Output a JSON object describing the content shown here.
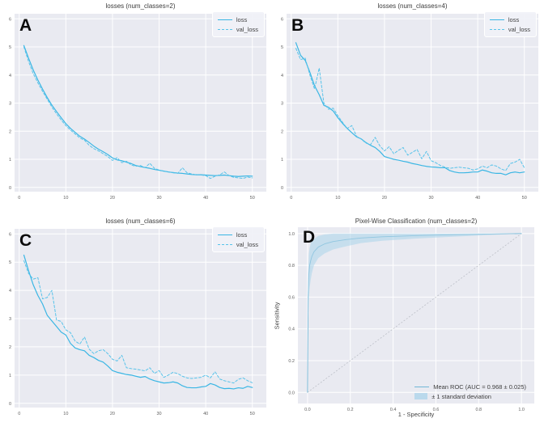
{
  "colors": {
    "axes_background": "#e9eaf1",
    "grid": "#ffffff",
    "loss_line": "#3ab6e4",
    "val_loss_line": "#58c3ea",
    "roc_line": "#72b7d6",
    "roc_band": "#a9d3ea",
    "diagonal": "#bcbfc7",
    "tick_text": "#606060",
    "title_text": "#3a3a3a",
    "panel_letter": "#0a0a0a"
  },
  "panels": [
    {
      "letter": "A"
    },
    {
      "letter": "B"
    },
    {
      "letter": "C"
    },
    {
      "letter": "D"
    }
  ],
  "chart_data": [
    {
      "type": "line",
      "title": "losses (num_classes=2)",
      "xlabel": "",
      "ylabel": "",
      "xlim": [
        -1,
        53
      ],
      "ylim": [
        -0.15,
        6.18
      ],
      "xticks": [
        0,
        10,
        20,
        30,
        40,
        50
      ],
      "yticks": [
        0,
        1,
        2,
        3,
        4,
        5,
        6
      ],
      "tick_decimals": 0,
      "grid": true,
      "legend_position": "upper right",
      "x": [
        1,
        2,
        3,
        4,
        5,
        6,
        7,
        8,
        9,
        10,
        11,
        12,
        13,
        14,
        15,
        16,
        17,
        18,
        19,
        20,
        21,
        22,
        23,
        24,
        25,
        26,
        27,
        28,
        29,
        30,
        31,
        32,
        33,
        34,
        35,
        36,
        37,
        38,
        39,
        40,
        41,
        42,
        43,
        44,
        45,
        46,
        47,
        48,
        49,
        50
      ],
      "series": [
        {
          "name": "loss",
          "dash": "solid",
          "color": "#3ab6e4",
          "values": [
            5.05,
            4.6,
            4.18,
            3.82,
            3.5,
            3.2,
            2.93,
            2.7,
            2.48,
            2.27,
            2.1,
            1.96,
            1.82,
            1.72,
            1.6,
            1.47,
            1.36,
            1.27,
            1.17,
            1.05,
            0.98,
            0.95,
            0.9,
            0.85,
            0.78,
            0.74,
            0.71,
            0.68,
            0.64,
            0.61,
            0.58,
            0.55,
            0.53,
            0.51,
            0.5,
            0.48,
            0.46,
            0.45,
            0.45,
            0.44,
            0.43,
            0.42,
            0.43,
            0.44,
            0.42,
            0.4,
            0.39,
            0.4,
            0.41,
            0.4
          ]
        },
        {
          "name": "val_loss",
          "dash": "dashed",
          "color": "#58c3ea",
          "values": [
            5.0,
            4.48,
            4.05,
            3.72,
            3.42,
            3.14,
            2.86,
            2.62,
            2.4,
            2.2,
            2.04,
            1.9,
            1.76,
            1.68,
            1.5,
            1.38,
            1.3,
            1.2,
            1.1,
            0.96,
            1.06,
            0.88,
            0.93,
            0.8,
            0.75,
            0.78,
            0.7,
            0.86,
            0.68,
            0.62,
            0.58,
            0.56,
            0.52,
            0.5,
            0.7,
            0.52,
            0.48,
            0.45,
            0.44,
            0.42,
            0.32,
            0.4,
            0.45,
            0.55,
            0.42,
            0.36,
            0.34,
            0.32,
            0.37,
            0.34
          ]
        }
      ]
    },
    {
      "type": "line",
      "title": "losses (num_classes=4)",
      "xlabel": "",
      "ylabel": "",
      "xlim": [
        -1,
        53
      ],
      "ylim": [
        -0.15,
        6.18
      ],
      "xticks": [
        0,
        10,
        20,
        30,
        40,
        50
      ],
      "yticks": [
        0,
        1,
        2,
        3,
        4,
        5,
        6
      ],
      "tick_decimals": 0,
      "grid": true,
      "legend_position": "upper right",
      "x": [
        1,
        2,
        3,
        4,
        5,
        6,
        7,
        8,
        9,
        10,
        11,
        12,
        13,
        14,
        15,
        16,
        17,
        18,
        19,
        20,
        21,
        22,
        23,
        24,
        25,
        26,
        27,
        28,
        29,
        30,
        31,
        32,
        33,
        34,
        35,
        36,
        37,
        38,
        39,
        40,
        41,
        42,
        43,
        44,
        45,
        46,
        47,
        48,
        49,
        50
      ],
      "series": [
        {
          "name": "loss",
          "dash": "solid",
          "color": "#3ab6e4",
          "values": [
            5.15,
            4.7,
            4.52,
            4.1,
            3.62,
            3.3,
            2.92,
            2.85,
            2.72,
            2.48,
            2.28,
            2.1,
            1.95,
            1.8,
            1.73,
            1.6,
            1.5,
            1.42,
            1.28,
            1.1,
            1.05,
            1.0,
            0.97,
            0.93,
            0.9,
            0.85,
            0.82,
            0.78,
            0.75,
            0.73,
            0.72,
            0.7,
            0.7,
            0.6,
            0.55,
            0.52,
            0.52,
            0.53,
            0.55,
            0.55,
            0.62,
            0.58,
            0.52,
            0.5,
            0.5,
            0.45,
            0.52,
            0.55,
            0.52,
            0.55
          ]
        },
        {
          "name": "val_loss",
          "dash": "dashed",
          "color": "#58c3ea",
          "values": [
            4.95,
            4.55,
            4.6,
            4.0,
            3.5,
            4.25,
            3.0,
            2.78,
            2.82,
            2.55,
            2.32,
            2.1,
            2.2,
            1.82,
            1.72,
            1.58,
            1.52,
            1.78,
            1.48,
            1.3,
            1.45,
            1.2,
            1.32,
            1.42,
            1.15,
            1.25,
            1.35,
            1.02,
            1.28,
            0.95,
            0.88,
            0.78,
            0.72,
            0.68,
            0.7,
            0.72,
            0.7,
            0.68,
            0.62,
            0.66,
            0.76,
            0.7,
            0.8,
            0.76,
            0.66,
            0.6,
            0.85,
            0.9,
            1.0,
            0.7
          ]
        }
      ]
    },
    {
      "type": "line",
      "title": "losses (num_classes=6)",
      "xlabel": "",
      "ylabel": "",
      "xlim": [
        -1,
        53
      ],
      "ylim": [
        -0.15,
        6.18
      ],
      "xticks": [
        0,
        10,
        20,
        30,
        40,
        50
      ],
      "yticks": [
        0,
        1,
        2,
        3,
        4,
        5,
        6
      ],
      "tick_decimals": 0,
      "grid": true,
      "legend_position": "upper right",
      "x": [
        1,
        2,
        3,
        4,
        5,
        6,
        7,
        8,
        9,
        10,
        11,
        12,
        13,
        14,
        15,
        16,
        17,
        18,
        19,
        20,
        21,
        22,
        23,
        24,
        25,
        26,
        27,
        28,
        29,
        30,
        31,
        32,
        33,
        34,
        35,
        36,
        37,
        38,
        39,
        40,
        41,
        42,
        43,
        44,
        45,
        46,
        47,
        48,
        49,
        50
      ],
      "series": [
        {
          "name": "loss",
          "dash": "solid",
          "color": "#3ab6e4",
          "values": [
            5.25,
            4.7,
            4.2,
            3.82,
            3.52,
            3.12,
            2.92,
            2.72,
            2.52,
            2.42,
            2.12,
            1.96,
            1.9,
            1.86,
            1.7,
            1.62,
            1.52,
            1.46,
            1.32,
            1.16,
            1.1,
            1.06,
            1.02,
            1.0,
            0.96,
            0.92,
            0.95,
            0.86,
            0.8,
            0.76,
            0.72,
            0.73,
            0.76,
            0.72,
            0.62,
            0.56,
            0.55,
            0.55,
            0.58,
            0.6,
            0.7,
            0.65,
            0.56,
            0.52,
            0.53,
            0.51,
            0.55,
            0.53,
            0.6,
            0.56
          ]
        },
        {
          "name": "val_loss",
          "dash": "dashed",
          "color": "#58c3ea",
          "values": [
            5.05,
            4.6,
            4.4,
            4.45,
            3.7,
            3.75,
            4.0,
            2.95,
            2.9,
            2.6,
            2.5,
            2.2,
            2.1,
            2.35,
            1.92,
            1.76,
            1.86,
            1.9,
            1.76,
            1.56,
            1.5,
            1.7,
            1.26,
            1.23,
            1.21,
            1.18,
            1.15,
            1.26,
            1.06,
            1.16,
            0.92,
            1.0,
            1.1,
            1.05,
            0.96,
            0.9,
            0.88,
            0.9,
            0.92,
            1.0,
            0.9,
            1.12,
            0.86,
            0.8,
            0.76,
            0.72,
            0.85,
            0.9,
            0.8,
            0.73
          ]
        }
      ]
    },
    {
      "type": "line",
      "title": "Pixel-Wise Classification (num_classes=2)",
      "xlabel": "1 - Specificity",
      "ylabel": "Sensitivity",
      "xlim": [
        -0.045,
        1.06
      ],
      "ylim": [
        -0.07,
        1.04
      ],
      "xticks": [
        0,
        0.2,
        0.4,
        0.6,
        0.8,
        1.0
      ],
      "yticks": [
        0,
        0.2,
        0.4,
        0.6,
        0.8,
        1.0
      ],
      "tick_decimals": 1,
      "grid": true,
      "diagonal": true,
      "legend_position": "lower right",
      "series": [
        {
          "name": "Mean ROC (AUC = 0.968 ± 0.025)",
          "dash": "solid",
          "color": "#72b7d6",
          "width": 0.9,
          "swatch": "line",
          "x": [
            0,
            0.003,
            0.006,
            0.01,
            0.015,
            0.02,
            0.03,
            0.05,
            0.08,
            0.12,
            0.18,
            0.25,
            0.35,
            0.5,
            0.65,
            0.8,
            1.0
          ],
          "values": [
            0,
            0.6,
            0.74,
            0.8,
            0.83,
            0.855,
            0.885,
            0.915,
            0.935,
            0.95,
            0.962,
            0.972,
            0.98,
            0.987,
            0.992,
            0.996,
            1.0
          ]
        },
        {
          "name": "± 1 standard deviation",
          "color": "#a9d3ea",
          "swatch": "band",
          "x": [
            0,
            0.003,
            0.006,
            0.01,
            0.015,
            0.02,
            0.03,
            0.05,
            0.08,
            0.12,
            0.18,
            0.25,
            0.35,
            0.5,
            0.65,
            0.8,
            1.0
          ],
          "band_lower": [
            0,
            0.45,
            0.58,
            0.66,
            0.71,
            0.75,
            0.8,
            0.845,
            0.875,
            0.9,
            0.92,
            0.94,
            0.955,
            0.968,
            0.978,
            0.988,
            1.0
          ],
          "band_upper": [
            0,
            0.75,
            0.87,
            0.91,
            0.94,
            0.955,
            0.965,
            0.985,
            0.995,
            1.0,
            1.0,
            1.0,
            1.0,
            1.0,
            1.0,
            1.0,
            1.0
          ]
        }
      ]
    }
  ]
}
